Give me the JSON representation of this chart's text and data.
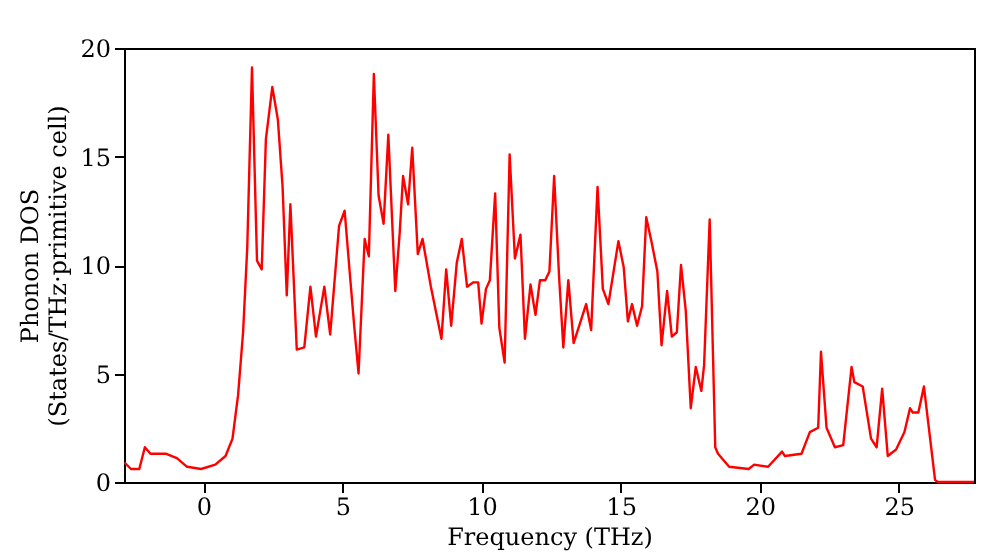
{
  "chart_data": {
    "type": "line",
    "xlabel": "Frequency (THz)",
    "ylabel": "Phonon DOS\n(States/THz·primitive cell)",
    "xlim": [
      -2.85,
      27.7
    ],
    "ylim": [
      0,
      20
    ],
    "xticks": [
      0,
      5,
      10,
      15,
      20,
      25
    ],
    "yticks": [
      0,
      5,
      10,
      15,
      20
    ],
    "grid": false,
    "legend": false,
    "line_style": "solid",
    "series": [
      {
        "color": "#ff0000",
        "x": [
          -2.83,
          -2.6,
          -2.3,
          -2.1,
          -1.9,
          -1.33,
          -0.95,
          -0.58,
          -0.08,
          0.43,
          0.8,
          1.05,
          1.25,
          1.43,
          1.58,
          1.75,
          1.93,
          2.1,
          2.25,
          2.48,
          2.68,
          2.85,
          3.0,
          3.13,
          3.36,
          3.63,
          3.85,
          4.05,
          4.35,
          4.56,
          4.88,
          5.08,
          5.26,
          5.43,
          5.58,
          5.8,
          5.95,
          6.13,
          6.3,
          6.48,
          6.65,
          6.9,
          7.06,
          7.18,
          7.36,
          7.51,
          7.71,
          7.88,
          8.18,
          8.56,
          8.73,
          8.91,
          9.11,
          9.29,
          9.48,
          9.71,
          9.88,
          10.0,
          10.16,
          10.3,
          10.49,
          10.64,
          10.83,
          11.01,
          11.2,
          11.4,
          11.56,
          11.76,
          11.94,
          12.1,
          12.29,
          12.44,
          12.61,
          12.79,
          12.94,
          13.12,
          13.31,
          13.76,
          13.94,
          14.17,
          14.36,
          14.56,
          14.92,
          15.11,
          15.26,
          15.41,
          15.59,
          15.77,
          15.92,
          16.12,
          16.32,
          16.47,
          16.67,
          16.84,
          17.02,
          17.17,
          17.34,
          17.52,
          17.7,
          17.9,
          18.0,
          18.2,
          18.4,
          18.5,
          18.9,
          19.6,
          19.8,
          20.3,
          20.8,
          20.9,
          21.5,
          21.8,
          22.1,
          22.2,
          22.4,
          22.7,
          23.0,
          23.3,
          23.4,
          23.7,
          24.0,
          24.2,
          24.4,
          24.6,
          24.9,
          25.2,
          25.4,
          25.5,
          25.7,
          25.9,
          26.3,
          26.4,
          27.7
        ],
        "values": [
          0.9,
          0.6,
          0.6,
          1.6,
          1.3,
          1.3,
          1.1,
          0.7,
          0.6,
          0.8,
          1.2,
          2.0,
          4.0,
          6.9,
          10.8,
          19.1,
          10.2,
          9.8,
          15.8,
          18.2,
          16.7,
          13.6,
          8.6,
          12.8,
          6.1,
          6.2,
          9.0,
          6.7,
          9.0,
          6.8,
          11.8,
          12.5,
          9.7,
          7.1,
          5.0,
          11.2,
          10.4,
          18.8,
          13.2,
          11.9,
          16.0,
          8.8,
          11.5,
          14.1,
          12.8,
          15.4,
          10.5,
          11.2,
          9.0,
          6.6,
          9.8,
          7.2,
          10.1,
          11.2,
          9.0,
          9.2,
          9.2,
          7.3,
          8.9,
          9.3,
          13.3,
          7.1,
          5.5,
          15.1,
          10.3,
          11.4,
          6.6,
          9.1,
          7.7,
          9.3,
          9.3,
          9.7,
          14.1,
          9.4,
          6.2,
          9.3,
          6.4,
          8.2,
          7.0,
          13.6,
          8.9,
          8.2,
          11.1,
          9.9,
          7.4,
          8.2,
          7.2,
          8.1,
          12.2,
          11.0,
          9.7,
          6.3,
          8.8,
          6.7,
          6.9,
          10.0,
          7.9,
          3.4,
          5.3,
          4.2,
          5.4,
          12.1,
          1.6,
          1.3,
          0.7,
          0.6,
          0.8,
          0.7,
          1.4,
          1.2,
          1.3,
          2.3,
          2.5,
          6.0,
          2.5,
          1.6,
          1.7,
          5.3,
          4.6,
          4.4,
          2.0,
          1.6,
          4.3,
          1.2,
          1.5,
          2.3,
          3.4,
          3.2,
          3.2,
          4.4,
          0.1,
          0.0,
          0.0
        ]
      }
    ]
  }
}
